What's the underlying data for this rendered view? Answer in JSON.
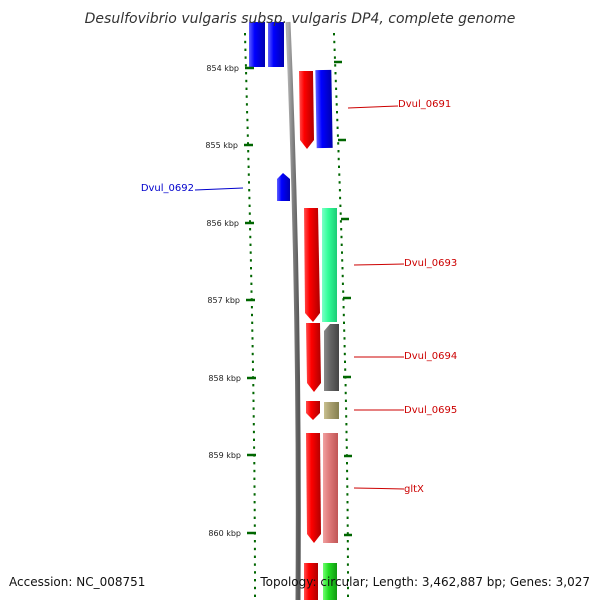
{
  "title": "Desulfovibrio vulgaris subsp. vulgaris DP4, complete genome",
  "accession": "Accession: NC_008751",
  "summary": "Topology: circular; Length: 3,462,887 bp; Genes: 3,027",
  "colors": {
    "forward_label": "#cc0000",
    "reverse_label": "#0000cc",
    "backbone": "#808080",
    "tick": "#006600"
  },
  "kbp_labels": [
    "854 kbp",
    "855 kbp",
    "856 kbp",
    "857 kbp",
    "858 kbp",
    "859 kbp",
    "860 kbp"
  ],
  "gene_labels": [
    {
      "name": "Dvul_0691",
      "strand": "forward"
    },
    {
      "name": "Dvul_0692",
      "strand": "reverse"
    },
    {
      "name": "Dvul_0693",
      "strand": "forward"
    },
    {
      "name": "Dvul_0694",
      "strand": "forward"
    },
    {
      "name": "Dvul_0695",
      "strand": "forward"
    },
    {
      "name": "gltX",
      "strand": "forward"
    }
  ]
}
